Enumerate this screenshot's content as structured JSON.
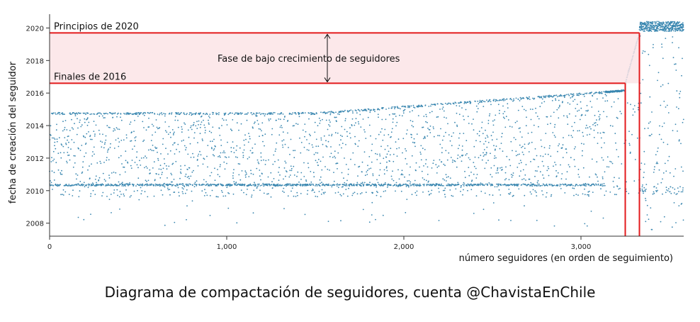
{
  "chart_data": {
    "type": "scatter",
    "title": "Diagrama de compactación de seguidores, cuenta @ChavistaEnChile",
    "xlabel": "número seguidores (en orden de seguimiento)",
    "ylabel": "fecha de creación del seguidor",
    "xlim": [
      0,
      3580
    ],
    "ylim": [
      2007.2,
      2020.5
    ],
    "x_ticks": [
      0,
      1000,
      2000,
      3000
    ],
    "x_tick_labels": [
      "0",
      "1,000",
      "2,000",
      "3,000"
    ],
    "y_ticks": [
      2008,
      2010,
      2012,
      2014,
      2016,
      2018,
      2020
    ],
    "y_tick_labels": [
      "2008",
      "2010",
      "2012",
      "2014",
      "2016",
      "2018",
      "2020"
    ],
    "grid": false,
    "point_color": "#3a87b0",
    "highlight_color": "#e31a1c",
    "highlight_fill": "#fce4e6",
    "highlight_band": {
      "y_from": 2016.6,
      "y_to": 2019.7,
      "x_from": 0,
      "x_to": 3330
    },
    "vertical_markers": [
      3250,
      3330
    ],
    "annotations": {
      "top_label": "Principios de 2020",
      "bottom_label": "Finales de 2016",
      "band_label": "Fase de bajo crecimiento de seguidores"
    },
    "series": [
      {
        "values_description_x_ranges": [
          {
            "x_from": 0,
            "x_to": 3140,
            "y_from": 2009.5,
            "y_to": 2014.8,
            "density": "dense"
          },
          {
            "x_from": 0,
            "x_to": 3140,
            "y": 2010.35,
            "pattern": "horizontal band"
          },
          {
            "x_from": 1500,
            "x_to": 3250,
            "y_start": 2014.8,
            "y_end": 2016.2,
            "pattern": "upper envelope rising"
          },
          {
            "x_from": 3250,
            "x_to": 3330,
            "y_start": 2016.6,
            "y_end": 2019.7,
            "pattern": "steep rise"
          },
          {
            "x_from": 3330,
            "x_to": 3580,
            "y_from": 2019.7,
            "y_to": 2020.4,
            "density": "dense"
          },
          {
            "x_from": 3330,
            "x_to": 3580,
            "y_from": 2007.5,
            "y_to": 2020.4,
            "density": "sparse"
          }
        ]
      }
    ]
  },
  "caption": "Diagrama de compactación de seguidores, cuenta @ChavistaEnChile"
}
